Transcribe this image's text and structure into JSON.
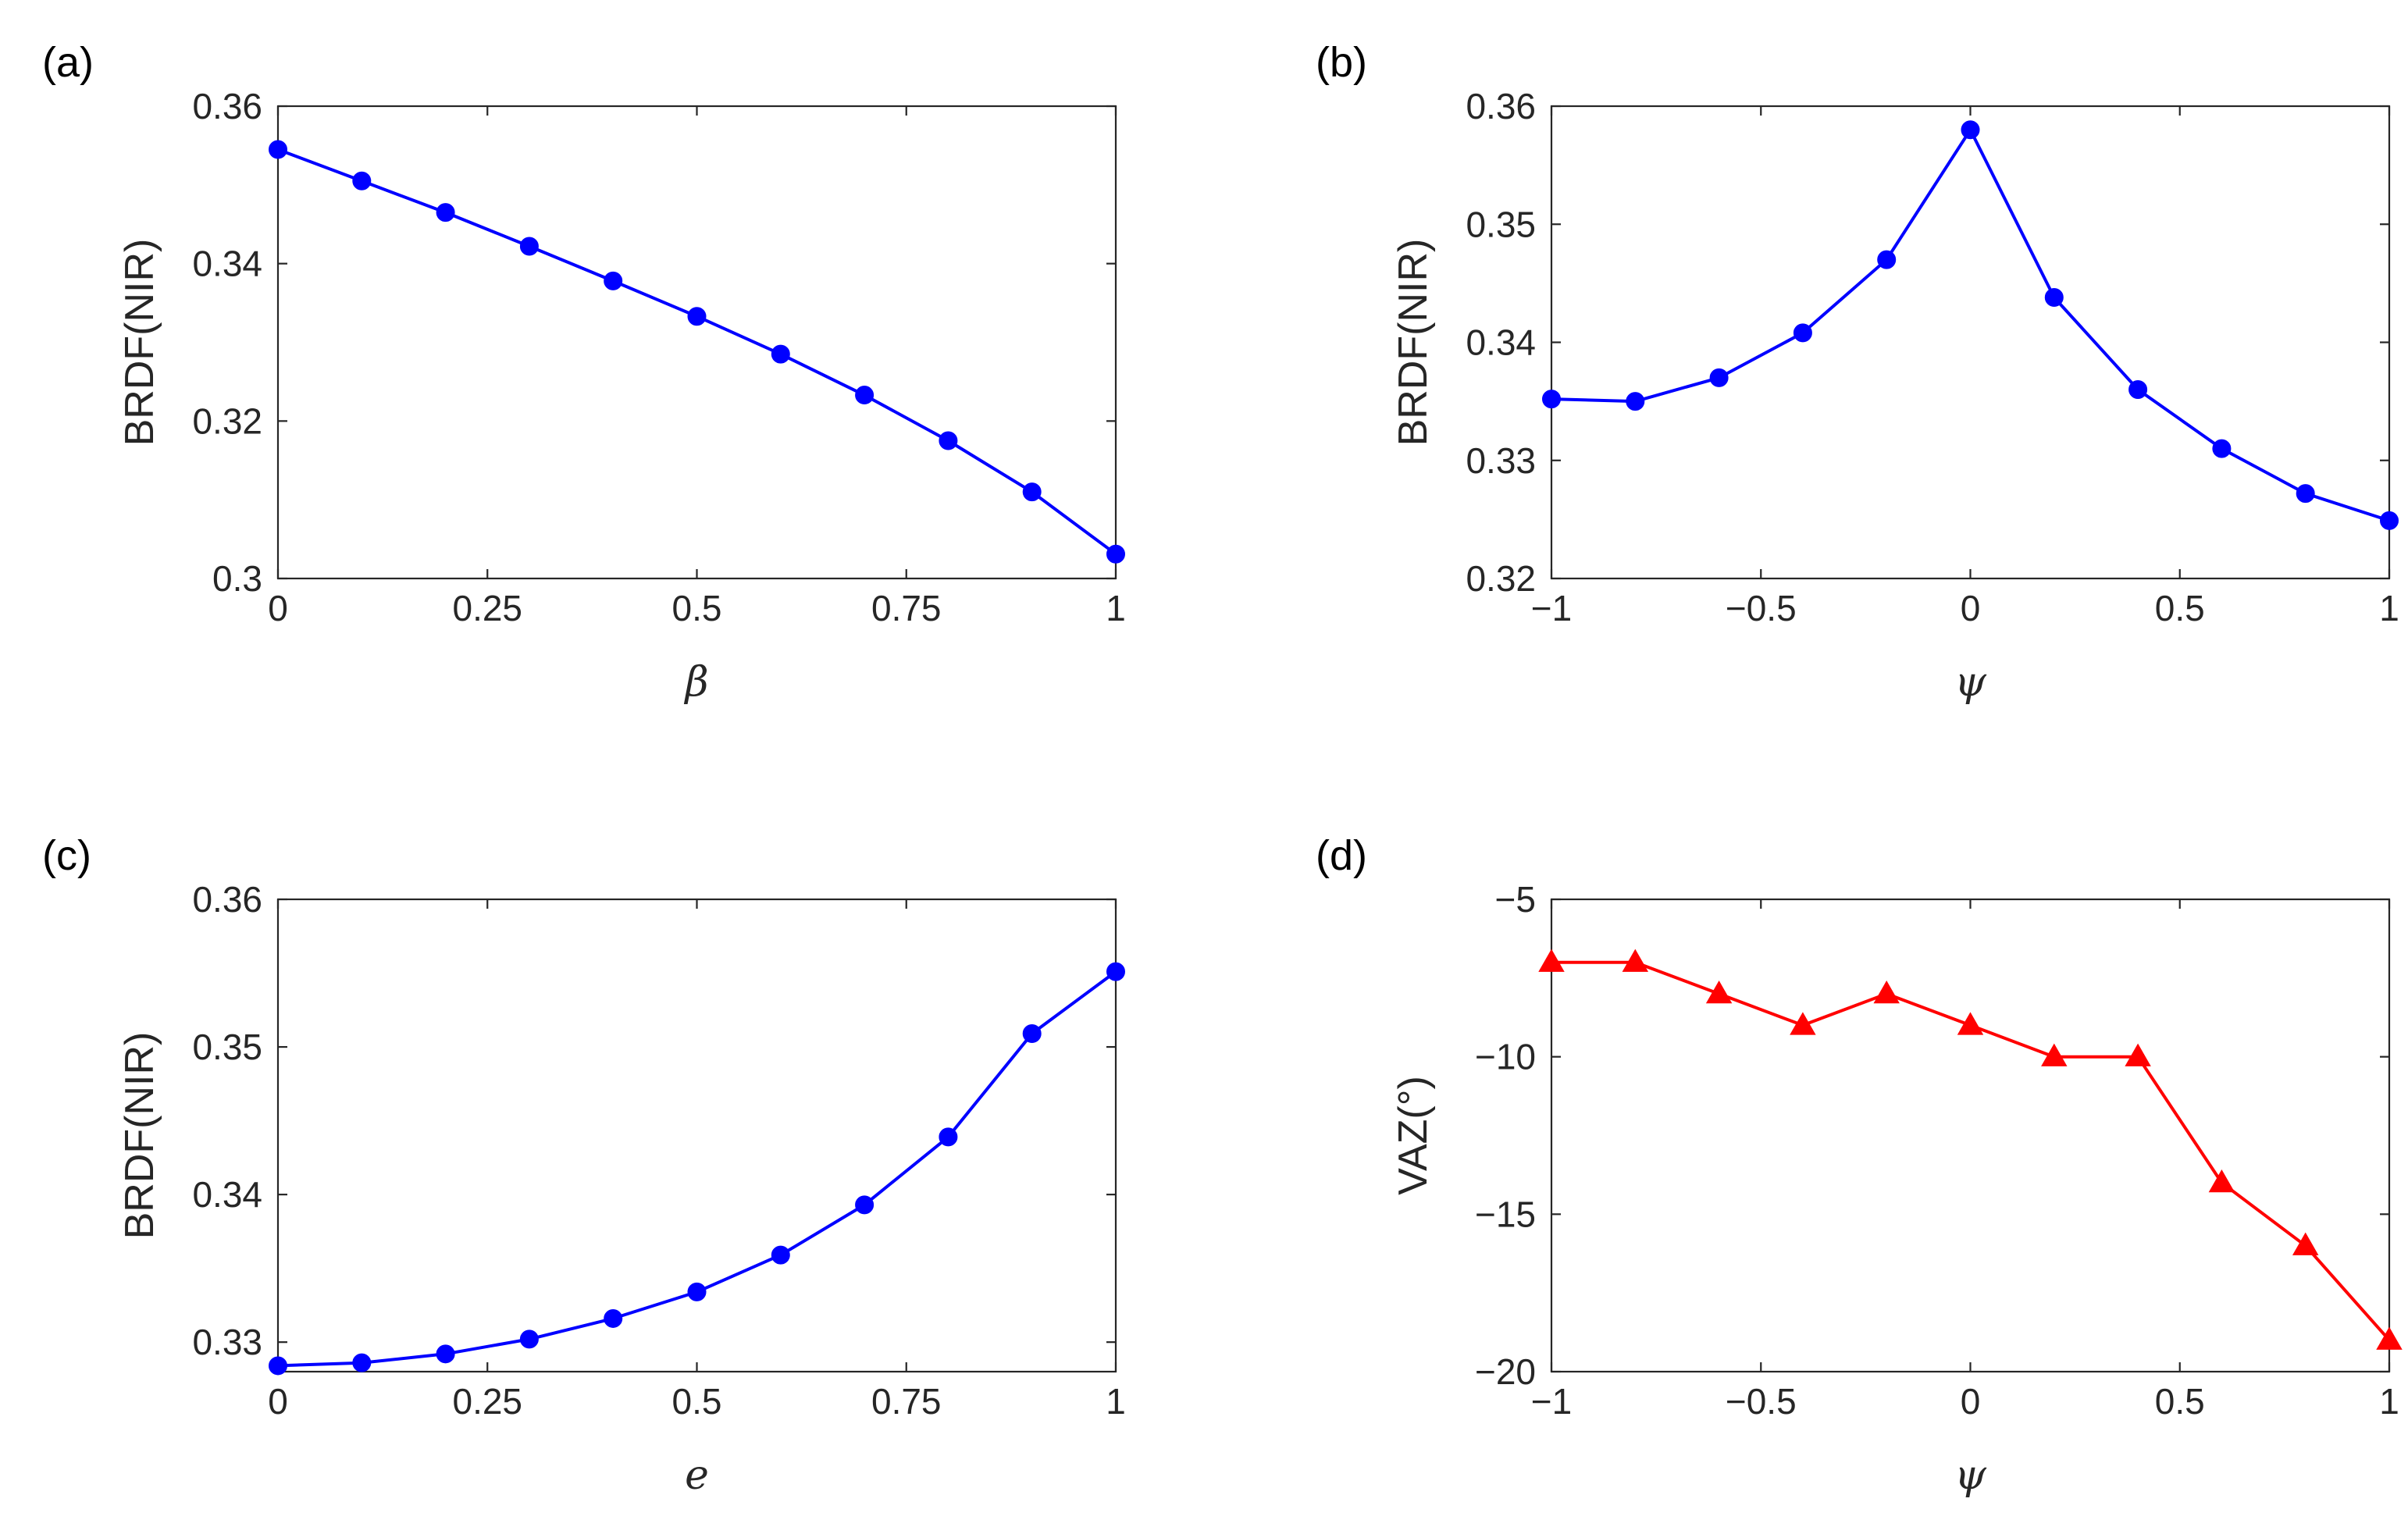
{
  "colors": {
    "blue": "#0000ff",
    "red": "#ff0000",
    "axis": "#262626"
  },
  "chart_data": [
    {
      "id": "a",
      "type": "line",
      "panel_label": "(a)",
      "xlabel": "β",
      "ylabel": "BRDF(NIR)",
      "xlim": [
        0,
        1
      ],
      "ylim": [
        0.3,
        0.36
      ],
      "xticks": [
        0,
        0.25,
        0.5,
        0.75,
        1
      ],
      "xtick_labels": [
        "0",
        "0.25",
        "0.5",
        "0.75",
        "1"
      ],
      "yticks": [
        0.3,
        0.32,
        0.34,
        0.36
      ],
      "ytick_labels": [
        "0.3",
        "0.32",
        "0.34",
        "0.36"
      ],
      "marker": "circle",
      "color": "#0000ff",
      "x": [
        0,
        0.1,
        0.2,
        0.3,
        0.4,
        0.5,
        0.6,
        0.7,
        0.8,
        0.9,
        1
      ],
      "y": [
        0.3545,
        0.3505,
        0.3465,
        0.3422,
        0.3378,
        0.3333,
        0.3285,
        0.3233,
        0.3175,
        0.311,
        0.3031
      ]
    },
    {
      "id": "b",
      "type": "line",
      "panel_label": "(b)",
      "xlabel": "ψ",
      "ylabel": "BRDF(NIR)",
      "xlim": [
        -1,
        1
      ],
      "ylim": [
        0.32,
        0.36
      ],
      "xticks": [
        -1,
        -0.5,
        0,
        0.5,
        1
      ],
      "xtick_labels": [
        "−1",
        "−0.5",
        "0",
        "0.5",
        "1"
      ],
      "yticks": [
        0.32,
        0.33,
        0.34,
        0.35,
        0.36
      ],
      "ytick_labels": [
        "0.32",
        "0.33",
        "0.34",
        "0.35",
        "0.36"
      ],
      "marker": "circle",
      "color": "#0000ff",
      "x": [
        -1,
        -0.8,
        -0.6,
        -0.4,
        -0.2,
        0,
        0.2,
        0.4,
        0.6,
        0.8,
        1
      ],
      "y": [
        0.3352,
        0.335,
        0.337,
        0.3408,
        0.347,
        0.358,
        0.3438,
        0.336,
        0.331,
        0.3272,
        0.3249
      ]
    },
    {
      "id": "c",
      "type": "line",
      "panel_label": "(c)",
      "xlabel": "e",
      "ylabel": "BRDF(NIR)",
      "xlim": [
        0,
        1
      ],
      "ylim": [
        0.328,
        0.36
      ],
      "xticks": [
        0,
        0.25,
        0.5,
        0.75,
        1
      ],
      "xtick_labels": [
        "0",
        "0.25",
        "0.5",
        "0.75",
        "1"
      ],
      "yticks": [
        0.33,
        0.34,
        0.35,
        0.36
      ],
      "ytick_labels": [
        "0.33",
        "0.34",
        "0.35",
        "0.36"
      ],
      "marker": "circle",
      "color": "#0000ff",
      "x": [
        0,
        0.1,
        0.2,
        0.3,
        0.4,
        0.5,
        0.6,
        0.7,
        0.8,
        0.9,
        1
      ],
      "y": [
        0.3284,
        0.3286,
        0.3292,
        0.3302,
        0.3316,
        0.3334,
        0.3359,
        0.3393,
        0.3439,
        0.3509,
        0.3551
      ]
    },
    {
      "id": "d",
      "type": "line",
      "panel_label": "(d)",
      "xlabel": "ψ",
      "ylabel": "VAZ(°)",
      "xlim": [
        -1,
        1
      ],
      "ylim": [
        -20,
        -5
      ],
      "xticks": [
        -1,
        -0.5,
        0,
        0.5,
        1
      ],
      "xtick_labels": [
        "−1",
        "−0.5",
        "0",
        "0.5",
        "1"
      ],
      "yticks": [
        -20,
        -15,
        -10,
        -5
      ],
      "ytick_labels": [
        "−20",
        "−15",
        "−10",
        "−5"
      ],
      "marker": "triangle",
      "color": "#ff0000",
      "x": [
        -1,
        -0.8,
        -0.6,
        -0.4,
        -0.2,
        0,
        0.2,
        0.4,
        0.6,
        0.8,
        1
      ],
      "y": [
        -7,
        -7,
        -8,
        -9,
        -8,
        -9,
        -10,
        -10,
        -14,
        -16,
        -19
      ]
    }
  ]
}
